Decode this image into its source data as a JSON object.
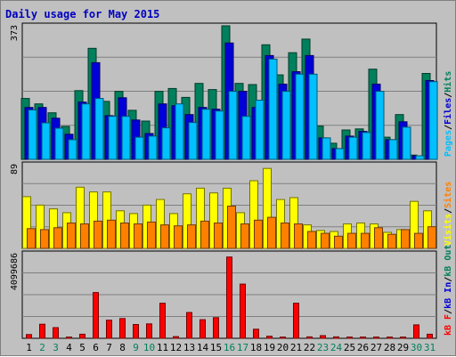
{
  "colors": {
    "hits": "#00805c",
    "files": "#0000d8",
    "pages": "#00c0ff",
    "visits": "#ffff00",
    "sites": "#ff8000",
    "kbin": "#0000d8",
    "kbout": "#00805c",
    "kbf": "#ff0000",
    "title": "#0000c0",
    "weekend_day": "#00805c",
    "weekday": "#000000",
    "panel_bg": "#c0c0c0"
  },
  "chart_data": {
    "type": "bar",
    "title": "Daily usage for May 2015",
    "days": [
      "1",
      "2",
      "3",
      "4",
      "5",
      "6",
      "7",
      "8",
      "9",
      "10",
      "11",
      "12",
      "13",
      "14",
      "15",
      "16",
      "17",
      "18",
      "19",
      "20",
      "21",
      "22",
      "23",
      "24",
      "25",
      "26",
      "27",
      "28",
      "29",
      "30",
      "31"
    ],
    "weekend_days": [
      "2",
      "3",
      "9",
      "10",
      "16",
      "17",
      "23",
      "24",
      "30",
      "31"
    ],
    "panels": [
      {
        "name": "hits-files-pages",
        "ymax_label": "373",
        "ymax": 373,
        "legend": [
          {
            "text": "Pages",
            "color_key": "pages"
          },
          {
            "text": "/",
            "color_key": "weekday"
          },
          {
            "text": "Files",
            "color_key": "files"
          },
          {
            "text": "/",
            "color_key": "weekday"
          },
          {
            "text": "Hits",
            "color_key": "hits"
          }
        ],
        "series": [
          {
            "color_key": "hits",
            "values": [
              170,
              155,
              130,
              92,
              192,
              310,
              162,
              190,
              137,
              107,
              190,
              198,
              173,
              212,
              195,
              375,
              212,
              209,
              320,
              236,
              298,
              336,
              93,
              45,
              82,
              85,
              252,
              62,
              125,
              12,
              240
            ]
          },
          {
            "color_key": "files",
            "values": [
              145,
              145,
              115,
              70,
              160,
              270,
              122,
              172,
              110,
              72,
              155,
              150,
              125,
              145,
              140,
              325,
              190,
              145,
              290,
              210,
              245,
              290,
              60,
              30,
              65,
              78,
              210,
              55,
              105,
              10,
              220
            ]
          },
          {
            "color_key": "pages",
            "values": [
              138,
              102,
              87,
              55,
              155,
              170,
              120,
              120,
              62,
              65,
              88,
              155,
              103,
              140,
              135,
              190,
              120,
              165,
              280,
              190,
              238,
              238,
              60,
              30,
              62,
              75,
              190,
              55,
              90,
              10,
              217
            ]
          }
        ]
      },
      {
        "name": "visits-sites",
        "ymax_label": "89",
        "ymax": 89,
        "legend": [
          {
            "text": "Visits",
            "color_key": "visits"
          },
          {
            "text": "/",
            "color_key": "weekday"
          },
          {
            "text": "Sites",
            "color_key": "sites"
          }
        ],
        "series": [
          {
            "color_key": "visits",
            "values": [
              55,
              46,
              42,
              38,
              65,
              60,
              60,
              40,
              37,
              46,
              52,
              37,
              58,
              64,
              59,
              64,
              38,
              72,
              85,
              52,
              54,
              25,
              19,
              18,
              26,
              27,
              26,
              17,
              20,
              50,
              40
            ]
          },
          {
            "color_key": "sites",
            "values": [
              21,
              20,
              22,
              27,
              26,
              29,
              30,
              27,
              26,
              28,
              25,
              24,
              25,
              29,
              27,
              45,
              26,
              30,
              33,
              27,
              26,
              18,
              16,
              13,
              16,
              16,
              22,
              15,
              20,
              16,
              23
            ]
          }
        ]
      },
      {
        "name": "kbf-kbin-kbout",
        "ymax_label": "4099686",
        "ymax": 4099686,
        "legend": [
          {
            "text": "kB F",
            "color_key": "kbf"
          },
          {
            "text": "/",
            "color_key": "weekday"
          },
          {
            "text": "kB In",
            "color_key": "kbin"
          },
          {
            "text": "/",
            "color_key": "weekday"
          },
          {
            "text": "kB Out",
            "color_key": "kbout"
          }
        ],
        "series": [
          {
            "color_key": "kbf",
            "values": [
              180000,
              680000,
              520000,
              60000,
              200000,
              2220000,
              880000,
              960000,
              670000,
              700000,
              1700000,
              80000,
              1250000,
              900000,
              1000000,
              3940000,
              2630000,
              440000,
              100000,
              60000,
              1700000,
              70000,
              130000,
              70000,
              60000,
              60000,
              60000,
              60000,
              60000,
              650000,
              200000
            ]
          }
        ]
      }
    ]
  }
}
